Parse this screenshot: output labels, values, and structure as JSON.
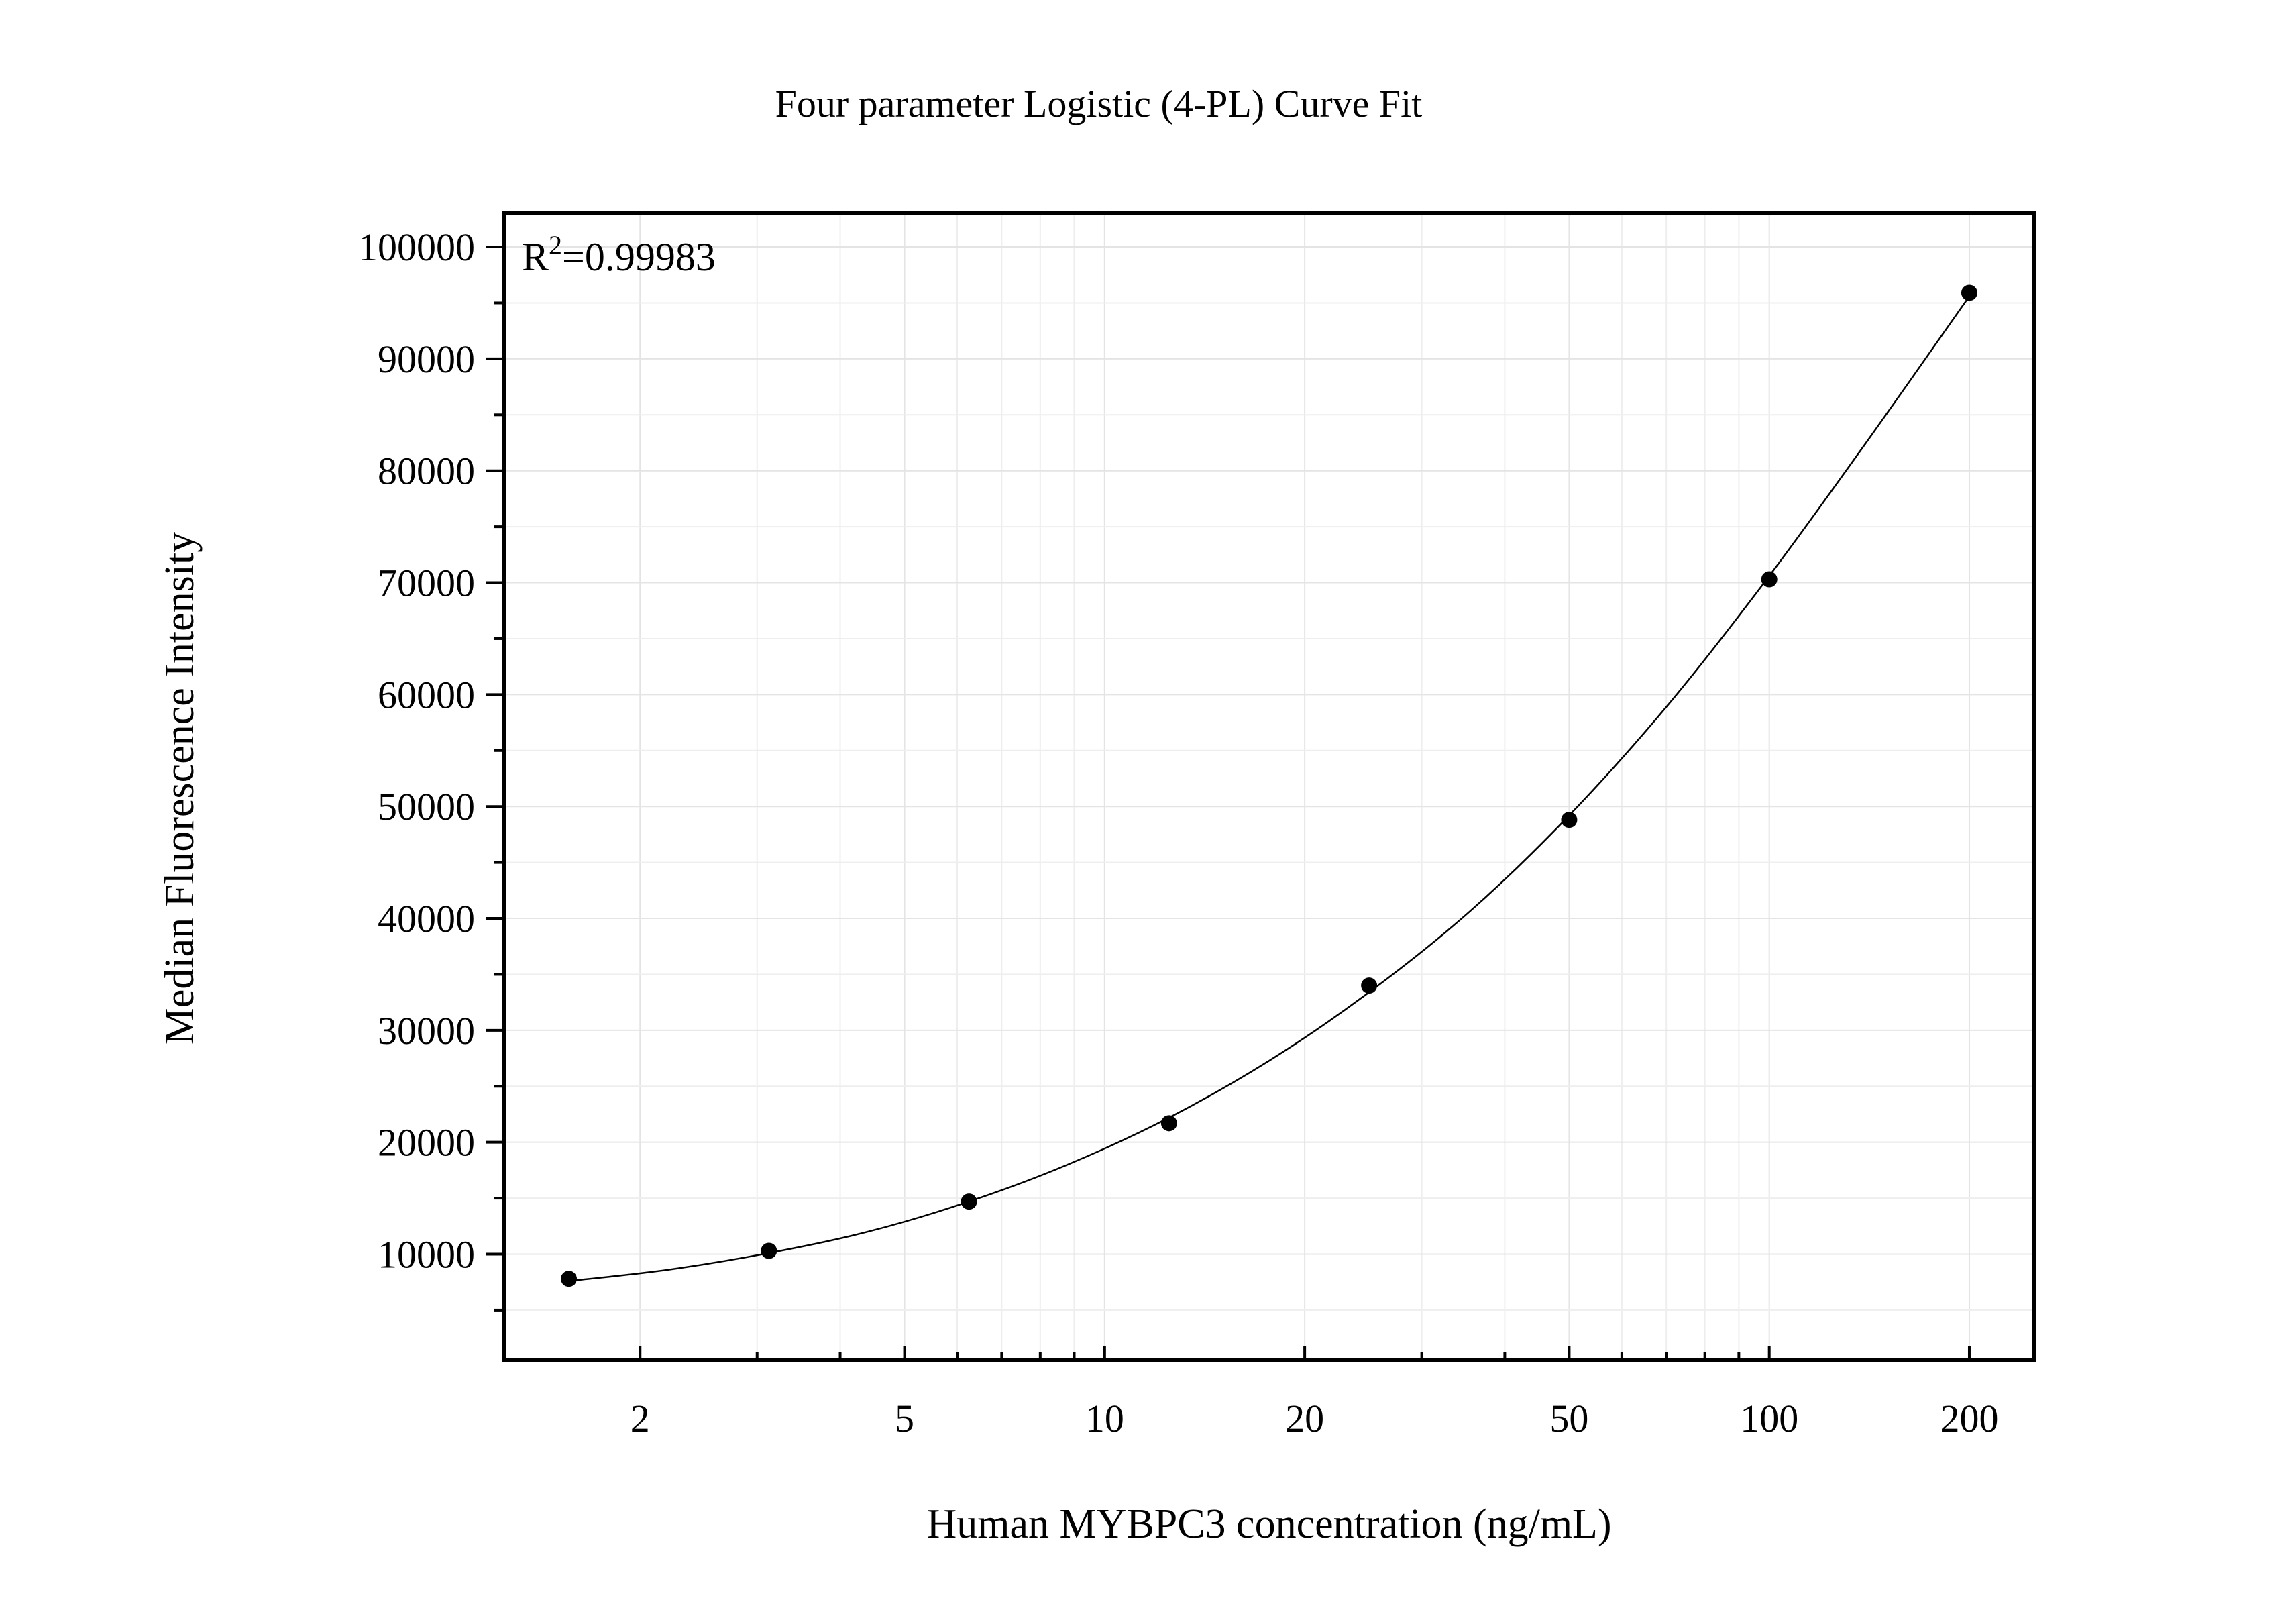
{
  "chart_data": {
    "type": "scatter",
    "title": "Four parameter Logistic (4-PL) Curve Fit",
    "xlabel": "Human MYBPC3 concentration (ng/mL)",
    "ylabel": "Median Fluorescence Intensity",
    "xscale": "log",
    "xlim": [
      1.25,
      250
    ],
    "ylim": [
      500,
      103000
    ],
    "x_ticks": [
      2,
      5,
      10,
      20,
      50,
      100,
      200
    ],
    "x_tick_labels": [
      "2",
      "5",
      "10",
      "20",
      "50",
      "100",
      "200"
    ],
    "y_ticks": [
      10000,
      20000,
      30000,
      40000,
      50000,
      60000,
      70000,
      80000,
      90000,
      100000
    ],
    "y_tick_labels": [
      "10000",
      "20000",
      "30000",
      "40000",
      "50000",
      "60000",
      "70000",
      "80000",
      "90000",
      "100000"
    ],
    "grid": true,
    "annotation": {
      "base": "R",
      "superscript": "2",
      "rest": "=0.99983"
    },
    "series": [
      {
        "points": [
          {
            "x": 1.5625,
            "y": 7800
          },
          {
            "x": 3.125,
            "y": 10300
          },
          {
            "x": 6.25,
            "y": 14700
          },
          {
            "x": 12.5,
            "y": 21700
          },
          {
            "x": 25,
            "y": 34000
          },
          {
            "x": 50,
            "y": 48800
          },
          {
            "x": 100,
            "y": 70300
          },
          {
            "x": 200,
            "y": 95900
          }
        ]
      }
    ],
    "fit_curve": {
      "model": "4PL",
      "points": [
        {
          "x": 1.5625,
          "y": 7600
        },
        {
          "x": 2.2,
          "y": 8600
        },
        {
          "x": 3.125,
          "y": 10100
        },
        {
          "x": 4.4,
          "y": 12000
        },
        {
          "x": 6.25,
          "y": 14700
        },
        {
          "x": 8.8,
          "y": 18000
        },
        {
          "x": 12.5,
          "y": 22200
        },
        {
          "x": 17.7,
          "y": 27300
        },
        {
          "x": 25,
          "y": 33400
        },
        {
          "x": 35.4,
          "y": 40600
        },
        {
          "x": 50,
          "y": 49200
        },
        {
          "x": 70.7,
          "y": 59200
        },
        {
          "x": 100,
          "y": 70600
        },
        {
          "x": 141,
          "y": 82800
        },
        {
          "x": 200,
          "y": 95600
        }
      ]
    }
  }
}
